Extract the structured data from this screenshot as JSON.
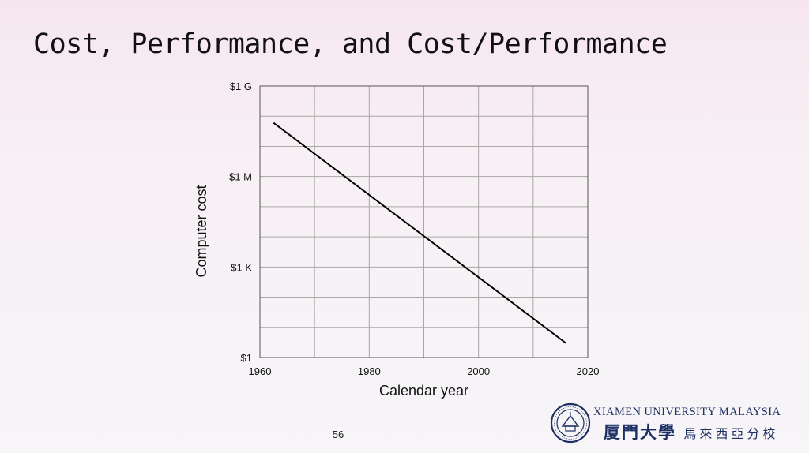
{
  "slide": {
    "title": "Cost, Performance, and Cost/Performance",
    "page_number": "56"
  },
  "logo": {
    "seal_icon": "university-seal-icon",
    "name_en": "XIAMEN UNIVERSITY MALAYSIA",
    "name_zh": "厦門大學",
    "name_zh_sub": "馬來西亞分校",
    "color": "#1c2f63"
  },
  "chart_data": {
    "type": "line",
    "xlabel": "Calendar year",
    "ylabel": "Computer cost",
    "xlim": [
      1960,
      2020
    ],
    "ylim": [
      1,
      1000000000
    ],
    "y_scale": "log",
    "grid": true,
    "x_ticks": [
      1960,
      1980,
      2000,
      2020
    ],
    "x_tick_labels": [
      "1960",
      "1980",
      "2000",
      "2020"
    ],
    "y_ticks": [
      1,
      1000,
      1000000,
      1000000000
    ],
    "y_tick_labels": [
      "$1",
      "$1 K",
      "$1 M",
      "$1 G"
    ],
    "series": [
      {
        "x": [
          1962.5,
          2016
        ],
        "y": [
          60000000,
          3
        ],
        "color": "#000000"
      }
    ]
  }
}
